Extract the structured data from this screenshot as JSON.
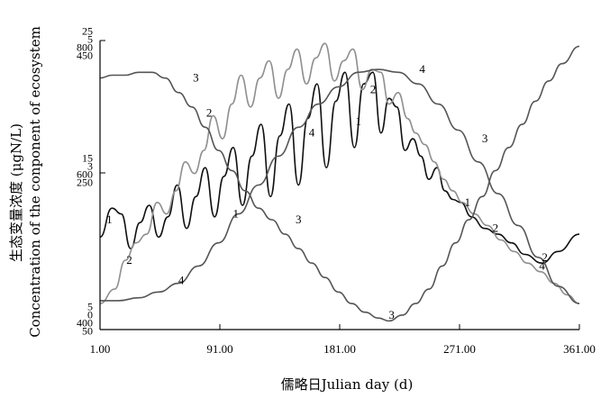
{
  "chart_data": {
    "type": "line",
    "xlabel": "儒略日Julian day (d)",
    "ylabel_cn": "生态变量浓度 (μgN/L)",
    "ylabel_en": "Concentration of the conponent of ecosystem",
    "x_ticks": [
      "1.00",
      "91.00",
      "181.00",
      "271.00",
      "361.00"
    ],
    "xlim": [
      1,
      361
    ],
    "y_tick_groups": [
      {
        "level": "top",
        "labels": [
          {
            "text": "25",
            "color": "#000000"
          },
          {
            "text": "5",
            "color": "#9a9a9a"
          },
          {
            "text": "800",
            "color": "#000000"
          },
          {
            "text": "450",
            "color": "#9a9a9a"
          }
        ]
      },
      {
        "level": "mid",
        "labels": [
          {
            "text": "15",
            "color": "#000000"
          },
          {
            "text": "3",
            "color": "#9a9a9a"
          },
          {
            "text": "600",
            "color": "#000000"
          },
          {
            "text": "250",
            "color": "#9a9a9a"
          }
        ]
      },
      {
        "level": "bottom",
        "labels": [
          {
            "text": "5",
            "color": "#000000"
          },
          {
            "text": "0",
            "color": "#9a9a9a"
          },
          {
            "text": "400",
            "color": "#000000"
          },
          {
            "text": "50",
            "color": "#9a9a9a"
          }
        ]
      }
    ],
    "series": [
      {
        "name": "1",
        "color": "#111111",
        "label_points": [
          [
            8,
            0.38
          ],
          [
            103,
            0.4
          ],
          [
            195,
            0.72
          ],
          [
            277,
            0.44
          ]
        ],
        "points": [
          [
            1,
            0.32
          ],
          [
            10,
            0.42
          ],
          [
            17,
            0.4
          ],
          [
            24,
            0.28
          ],
          [
            31,
            0.37
          ],
          [
            38,
            0.43
          ],
          [
            45,
            0.32
          ],
          [
            52,
            0.39
          ],
          [
            59,
            0.5
          ],
          [
            66,
            0.35
          ],
          [
            73,
            0.46
          ],
          [
            80,
            0.56
          ],
          [
            87,
            0.39
          ],
          [
            94,
            0.53
          ],
          [
            101,
            0.63
          ],
          [
            108,
            0.43
          ],
          [
            115,
            0.6
          ],
          [
            122,
            0.71
          ],
          [
            129,
            0.46
          ],
          [
            136,
            0.67
          ],
          [
            143,
            0.78
          ],
          [
            150,
            0.5
          ],
          [
            157,
            0.73
          ],
          [
            164,
            0.85
          ],
          [
            171,
            0.56
          ],
          [
            178,
            0.79
          ],
          [
            185,
            0.89
          ],
          [
            192,
            0.63
          ],
          [
            199,
            0.85
          ],
          [
            206,
            0.89
          ],
          [
            212,
            0.68
          ],
          [
            218,
            0.8
          ],
          [
            224,
            0.77
          ],
          [
            230,
            0.62
          ],
          [
            236,
            0.66
          ],
          [
            242,
            0.6
          ],
          [
            248,
            0.52
          ],
          [
            254,
            0.56
          ],
          [
            260,
            0.48
          ],
          [
            266,
            0.45
          ],
          [
            272,
            0.44
          ],
          [
            280,
            0.39
          ],
          [
            290,
            0.35
          ],
          [
            300,
            0.33
          ],
          [
            310,
            0.3
          ],
          [
            320,
            0.26
          ],
          [
            333,
            0.23
          ],
          [
            345,
            0.27
          ],
          [
            361,
            0.33
          ]
        ]
      },
      {
        "name": "2",
        "color": "#8f8f8f",
        "label_points": [
          [
            23,
            0.24
          ],
          [
            83,
            0.75
          ],
          [
            206,
            0.83
          ],
          [
            298,
            0.35
          ],
          [
            335,
            0.25
          ]
        ],
        "points": [
          [
            1,
            0.09
          ],
          [
            12,
            0.14
          ],
          [
            20,
            0.24
          ],
          [
            28,
            0.3
          ],
          [
            36,
            0.33
          ],
          [
            44,
            0.44
          ],
          [
            51,
            0.4
          ],
          [
            58,
            0.48
          ],
          [
            65,
            0.58
          ],
          [
            72,
            0.54
          ],
          [
            79,
            0.62
          ],
          [
            86,
            0.74
          ],
          [
            93,
            0.66
          ],
          [
            100,
            0.78
          ],
          [
            107,
            0.88
          ],
          [
            114,
            0.77
          ],
          [
            121,
            0.87
          ],
          [
            128,
            0.93
          ],
          [
            135,
            0.8
          ],
          [
            142,
            0.9
          ],
          [
            149,
            0.97
          ],
          [
            156,
            0.85
          ],
          [
            163,
            0.94
          ],
          [
            170,
            0.99
          ],
          [
            177,
            0.86
          ],
          [
            184,
            0.93
          ],
          [
            191,
            0.97
          ],
          [
            198,
            0.83
          ],
          [
            205,
            0.9
          ],
          [
            212,
            0.89
          ],
          [
            218,
            0.78
          ],
          [
            225,
            0.82
          ],
          [
            232,
            0.73
          ],
          [
            238,
            0.68
          ],
          [
            245,
            0.64
          ],
          [
            252,
            0.58
          ],
          [
            259,
            0.52
          ],
          [
            266,
            0.48
          ],
          [
            273,
            0.44
          ],
          [
            282,
            0.4
          ],
          [
            292,
            0.36
          ],
          [
            302,
            0.31
          ],
          [
            312,
            0.27
          ],
          [
            322,
            0.23
          ],
          [
            332,
            0.2
          ],
          [
            342,
            0.16
          ],
          [
            352,
            0.12
          ],
          [
            361,
            0.09
          ]
        ]
      },
      {
        "name": "3",
        "color": "#555555",
        "label_points": [
          [
            73,
            0.87
          ],
          [
            150,
            0.38
          ],
          [
            290,
            0.66
          ],
          [
            220,
            0.05
          ]
        ],
        "points": [
          [
            1,
            0.87
          ],
          [
            10,
            0.88
          ],
          [
            20,
            0.88
          ],
          [
            30,
            0.89
          ],
          [
            40,
            0.89
          ],
          [
            50,
            0.87
          ],
          [
            60,
            0.82
          ],
          [
            70,
            0.77
          ],
          [
            80,
            0.7
          ],
          [
            90,
            0.62
          ],
          [
            100,
            0.55
          ],
          [
            110,
            0.48
          ],
          [
            120,
            0.42
          ],
          [
            130,
            0.38
          ],
          [
            140,
            0.33
          ],
          [
            150,
            0.28
          ],
          [
            160,
            0.23
          ],
          [
            170,
            0.18
          ],
          [
            180,
            0.13
          ],
          [
            190,
            0.09
          ],
          [
            200,
            0.06
          ],
          [
            210,
            0.04
          ],
          [
            218,
            0.03
          ],
          [
            228,
            0.05
          ],
          [
            238,
            0.09
          ],
          [
            248,
            0.14
          ],
          [
            258,
            0.22
          ],
          [
            268,
            0.3
          ],
          [
            278,
            0.38
          ],
          [
            288,
            0.46
          ],
          [
            298,
            0.55
          ],
          [
            308,
            0.63
          ],
          [
            318,
            0.71
          ],
          [
            328,
            0.79
          ],
          [
            338,
            0.86
          ],
          [
            348,
            0.92
          ],
          [
            361,
            0.98
          ]
        ]
      },
      {
        "name": "4",
        "color": "#555555",
        "label_points": [
          [
            62,
            0.17
          ],
          [
            160,
            0.68
          ],
          [
            243,
            0.9
          ],
          [
            333,
            0.22
          ]
        ],
        "points": [
          [
            1,
            0.1
          ],
          [
            15,
            0.1
          ],
          [
            30,
            0.11
          ],
          [
            45,
            0.13
          ],
          [
            60,
            0.16
          ],
          [
            75,
            0.22
          ],
          [
            90,
            0.3
          ],
          [
            105,
            0.4
          ],
          [
            120,
            0.5
          ],
          [
            135,
            0.6
          ],
          [
            150,
            0.7
          ],
          [
            165,
            0.78
          ],
          [
            180,
            0.84
          ],
          [
            195,
            0.89
          ],
          [
            210,
            0.9
          ],
          [
            225,
            0.89
          ],
          [
            240,
            0.85
          ],
          [
            255,
            0.78
          ],
          [
            270,
            0.69
          ],
          [
            285,
            0.58
          ],
          [
            300,
            0.47
          ],
          [
            315,
            0.36
          ],
          [
            330,
            0.25
          ],
          [
            345,
            0.15
          ],
          [
            361,
            0.09
          ]
        ]
      }
    ]
  }
}
